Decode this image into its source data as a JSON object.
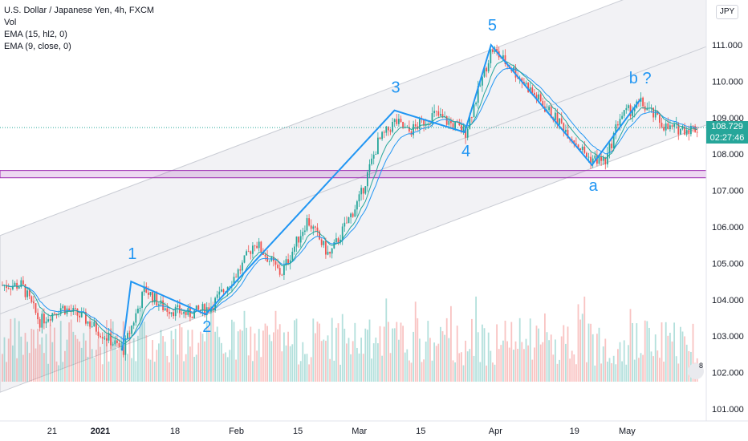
{
  "legend": {
    "title": "U.S. Dollar / Japanese Yen, 4h, FXCM",
    "vol": "Vol",
    "ema1": "EMA (15, hl2, 0)",
    "ema2": "EMA (9, close, 0)"
  },
  "currency_badge": "JPY",
  "current_price": "108.729",
  "countdown": "02:27:46",
  "flag_count": "8",
  "colors": {
    "up": "#26a69a",
    "down": "#ef5350",
    "wave": "#2196f3",
    "channel_fill": "#e9eaee",
    "zone": "#9c27b0",
    "ema_fast": "#26a69a",
    "ema_slow": "#2196f3"
  },
  "chart_data": {
    "type": "line",
    "title": "U.S. Dollar / Japanese Yen, 4h, FXCM",
    "ylabel": "",
    "xlabel": "",
    "ylim": [
      101.7,
      111.9
    ],
    "yticks": [
      "111.000",
      "110.000",
      "109.000",
      "108.000",
      "107.000",
      "106.000",
      "105.000",
      "104.000",
      "103.000",
      "102.000",
      "101.000"
    ],
    "xticks": [
      "21",
      "2021",
      "18",
      "Feb",
      "15",
      "Mar",
      "15",
      "Apr",
      "19",
      "May"
    ],
    "grid": false,
    "price_path": [
      [
        "Dec 14",
        104.4
      ],
      [
        "Dec 18",
        103.4
      ],
      [
        "Dec 23",
        103.8
      ],
      [
        "Dec 28",
        103.5
      ],
      [
        "Jan 6",
        102.6
      ],
      [
        "Jan 11",
        104.3
      ],
      [
        "Jan 15",
        103.8
      ],
      [
        "Jan 21",
        103.6
      ],
      [
        "Jan 26",
        103.8
      ],
      [
        "Feb 2",
        104.9
      ],
      [
        "Feb 5",
        105.6
      ],
      [
        "Feb 11",
        104.7
      ],
      [
        "Feb 17",
        106.2
      ],
      [
        "Feb 22",
        105.2
      ],
      [
        "Mar 1",
        106.8
      ],
      [
        "Mar 5",
        108.3
      ],
      [
        "Mar 9",
        108.9
      ],
      [
        "Mar 12",
        108.6
      ],
      [
        "Mar 18",
        109.1
      ],
      [
        "Mar 25",
        108.6
      ],
      [
        "Mar 31",
        110.9
      ],
      [
        "Apr 5",
        110.3
      ],
      [
        "Apr 12",
        109.3
      ],
      [
        "Apr 16",
        108.8
      ],
      [
        "Apr 22",
        107.9
      ],
      [
        "Apr 26",
        107.8
      ],
      [
        "Apr 29",
        109.0
      ],
      [
        "May 4",
        109.4
      ],
      [
        "May 10",
        108.7
      ]
    ],
    "waves": [
      {
        "label": "1",
        "date": "Jan 8",
        "price": 104.5
      },
      {
        "label": "2",
        "date": "Jan 25",
        "price": 103.6
      },
      {
        "label": "3",
        "date": "Mar 9",
        "price": 109.2
      },
      {
        "label": "4",
        "date": "Mar 25",
        "price": 108.6
      },
      {
        "label": "5",
        "date": "Mar 31",
        "price": 111.0
      },
      {
        "label": "a",
        "date": "Apr 23",
        "price": 107.7
      },
      {
        "label": "b ?",
        "date": "May 4",
        "price": 109.5
      }
    ],
    "zone": {
      "from": 107.35,
      "to": 107.55
    },
    "current_price": 108.729
  }
}
